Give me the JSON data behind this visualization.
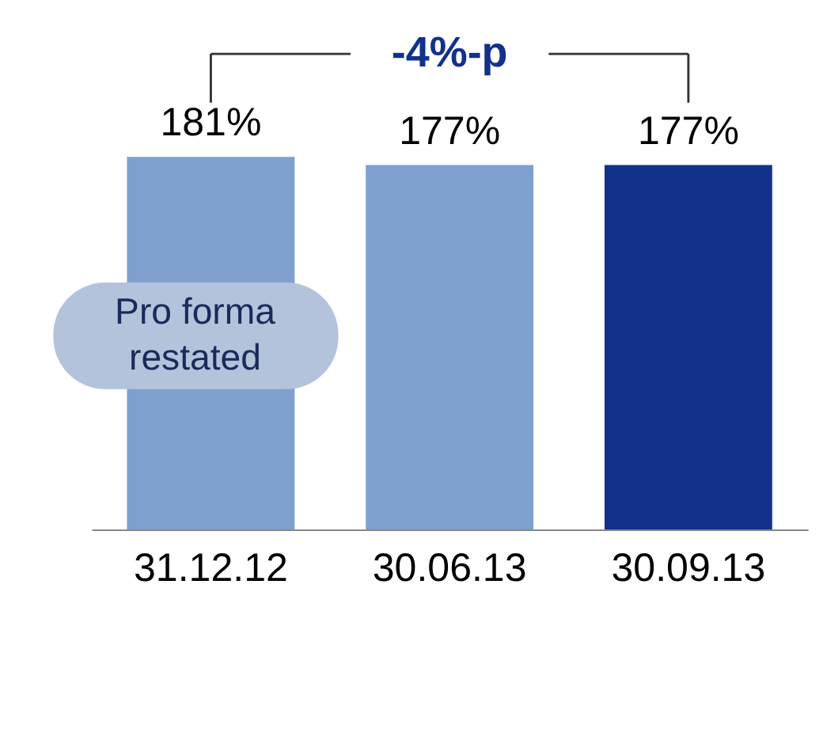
{
  "chart_data": {
    "type": "bar",
    "categories": [
      "31.12.12",
      "30.06.13",
      "30.09.13"
    ],
    "values": [
      181,
      177,
      177
    ],
    "colors": [
      "#7f9fcf",
      "#7f9fcf",
      "#12318a"
    ],
    "value_labels": [
      "181%",
      "177%",
      "177%"
    ],
    "annotations": [
      "-4%-p",
      "Pro forma\nrestated"
    ]
  }
}
